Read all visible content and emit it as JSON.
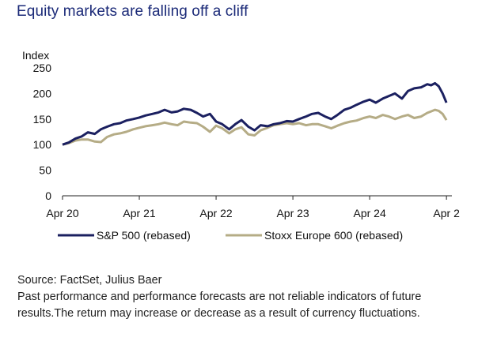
{
  "title": "Equity markets are falling off a cliff",
  "footer": {
    "source": "Source: FactSet, Julius Baer",
    "disclaimer": "Past performance and performance forecasts are not reliable indicators of future results.The return may increase or decrease as a result of currency fluctuations."
  },
  "chart_data": {
    "type": "line",
    "title": "",
    "ylabel": "Index",
    "xlabel": "",
    "ylim": [
      0,
      250
    ],
    "yticks": [
      0,
      50,
      100,
      150,
      200,
      250
    ],
    "xlim": [
      2020.25,
      2025.3
    ],
    "xticks": [
      {
        "value": 2020.25,
        "label": "Apr 20"
      },
      {
        "value": 2021.25,
        "label": "Apr 21"
      },
      {
        "value": 2022.25,
        "label": "Apr 22"
      },
      {
        "value": 2023.25,
        "label": "Apr 23"
      },
      {
        "value": 2024.25,
        "label": "Apr 24"
      },
      {
        "value": 2025.25,
        "label": "Apr 2"
      }
    ],
    "grid": false,
    "legend_position": "bottom",
    "series": [
      {
        "name": "S&P 500 (rebased)",
        "color": "#1b2060",
        "x": [
          2020.25,
          2020.33,
          2020.42,
          2020.5,
          2020.58,
          2020.67,
          2020.75,
          2020.83,
          2020.92,
          2021.0,
          2021.08,
          2021.17,
          2021.25,
          2021.33,
          2021.42,
          2021.5,
          2021.58,
          2021.67,
          2021.75,
          2021.83,
          2021.92,
          2022.0,
          2022.08,
          2022.17,
          2022.25,
          2022.33,
          2022.42,
          2022.5,
          2022.58,
          2022.67,
          2022.75,
          2022.83,
          2022.92,
          2023.0,
          2023.08,
          2023.17,
          2023.25,
          2023.33,
          2023.42,
          2023.5,
          2023.58,
          2023.67,
          2023.75,
          2023.83,
          2023.92,
          2024.0,
          2024.08,
          2024.17,
          2024.25,
          2024.33,
          2024.42,
          2024.5,
          2024.58,
          2024.67,
          2024.75,
          2024.83,
          2024.92,
          2025.0,
          2025.05,
          2025.1,
          2025.15,
          2025.2,
          2025.25
        ],
        "y": [
          100,
          104,
          112,
          116,
          124,
          121,
          130,
          135,
          140,
          142,
          147,
          150,
          153,
          157,
          160,
          163,
          168,
          163,
          165,
          170,
          168,
          162,
          155,
          160,
          145,
          140,
          130,
          140,
          148,
          135,
          128,
          138,
          136,
          140,
          142,
          146,
          145,
          150,
          155,
          160,
          162,
          155,
          150,
          158,
          168,
          172,
          178,
          184,
          188,
          182,
          190,
          195,
          200,
          190,
          205,
          210,
          212,
          218,
          216,
          220,
          214,
          200,
          182
        ]
      },
      {
        "name": "Stoxx Europe 600 (rebased)",
        "color": "#b5ac86",
        "x": [
          2020.25,
          2020.33,
          2020.42,
          2020.5,
          2020.58,
          2020.67,
          2020.75,
          2020.83,
          2020.92,
          2021.0,
          2021.08,
          2021.17,
          2021.25,
          2021.33,
          2021.42,
          2021.5,
          2021.58,
          2021.67,
          2021.75,
          2021.83,
          2021.92,
          2022.0,
          2022.08,
          2022.17,
          2022.25,
          2022.33,
          2022.42,
          2022.5,
          2022.58,
          2022.67,
          2022.75,
          2022.83,
          2022.92,
          2023.0,
          2023.08,
          2023.17,
          2023.25,
          2023.33,
          2023.42,
          2023.5,
          2023.58,
          2023.67,
          2023.75,
          2023.83,
          2023.92,
          2024.0,
          2024.08,
          2024.17,
          2024.25,
          2024.33,
          2024.42,
          2024.5,
          2024.58,
          2024.67,
          2024.75,
          2024.83,
          2024.92,
          2025.0,
          2025.05,
          2025.1,
          2025.15,
          2025.2,
          2025.25
        ],
        "y": [
          100,
          103,
          108,
          110,
          110,
          106,
          105,
          115,
          120,
          122,
          125,
          130,
          133,
          136,
          138,
          140,
          143,
          140,
          138,
          145,
          143,
          142,
          135,
          125,
          137,
          132,
          122,
          130,
          134,
          120,
          118,
          128,
          133,
          138,
          140,
          142,
          140,
          142,
          138,
          140,
          140,
          136,
          132,
          137,
          142,
          145,
          147,
          152,
          155,
          152,
          158,
          155,
          150,
          155,
          158,
          152,
          155,
          162,
          165,
          168,
          166,
          160,
          148
        ]
      }
    ]
  }
}
